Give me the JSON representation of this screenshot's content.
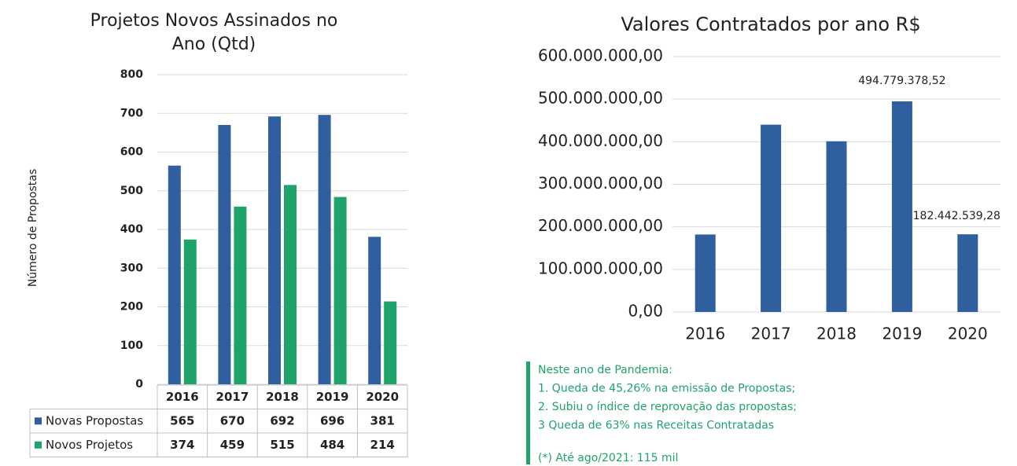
{
  "chart_data": [
    {
      "type": "bar",
      "title": "Projetos Novos Assinados no Ano (Qtd)",
      "y_label": "Número de Propostas",
      "categories": [
        "2016",
        "2017",
        "2018",
        "2019",
        "2020"
      ],
      "series": [
        {
          "name": "Novas Propostas",
          "color": "#2f5f9e",
          "values": [
            565,
            670,
            692,
            696,
            381
          ]
        },
        {
          "name": "Novos Projetos",
          "color": "#1fa36a",
          "values": [
            374,
            459,
            515,
            484,
            214
          ]
        }
      ],
      "ylim": [
        0,
        800
      ],
      "yticks": [
        0,
        100,
        200,
        300,
        400,
        500,
        600,
        700,
        800
      ],
      "grid": true,
      "data_table": true
    },
    {
      "type": "bar",
      "title": "Valores Contratados por ano R$",
      "categories": [
        "2016",
        "2017",
        "2018",
        "2019",
        "2020"
      ],
      "values": [
        182000000,
        440000000,
        401000000,
        494779378.52,
        182442539.28
      ],
      "value_labels": [
        null,
        null,
        null,
        "494.779.378,52",
        "182.442.539,28"
      ],
      "color": "#2f5f9e",
      "ylim": [
        0,
        600000000
      ],
      "yticks": [
        {
          "value": 0,
          "label": "0,00"
        },
        {
          "value": 100000000,
          "label": "100.000.000,00"
        },
        {
          "value": 200000000,
          "label": "200.000.000,00"
        },
        {
          "value": 300000000,
          "label": "300.000.000,00"
        },
        {
          "value": 400000000,
          "label": "400.000.000,00"
        },
        {
          "value": 500000000,
          "label": "500.000.000,00"
        },
        {
          "value": 600000000,
          "label": "600.000.000,00"
        }
      ],
      "grid": true
    }
  ],
  "notes": [
    "Neste ano de Pandemia:",
    "1. Queda de 45,26% na emissão de Propostas;",
    "2. Subiu o índice de reprovação das propostas;",
    "3  Queda de 63% nas Receitas Contratadas",
    "(*) Até ago/2021: 115 mil"
  ]
}
